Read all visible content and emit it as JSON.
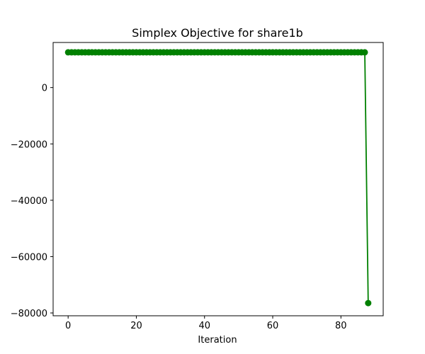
{
  "chart_data": {
    "type": "line",
    "title": "Simplex Objective for share1b",
    "xlabel": "Iteration",
    "ylabel": "",
    "xlim": [
      -4.4,
      92.4
    ],
    "ylim": [
      -81000,
      16000
    ],
    "x_ticks": [
      0,
      20,
      40,
      60,
      80
    ],
    "y_ticks": [
      0,
      -20000,
      -40000,
      -60000,
      -80000
    ],
    "x_tick_labels": [
      "0",
      "20",
      "40",
      "60",
      "80"
    ],
    "y_tick_labels": [
      "0",
      "−20000",
      "−40000",
      "−60000",
      "−80000"
    ],
    "grid": false,
    "legend": "none",
    "series": [
      {
        "color": "#008000",
        "marker": "circle",
        "x": [
          0,
          1,
          2,
          3,
          4,
          5,
          6,
          7,
          8,
          9,
          10,
          11,
          12,
          13,
          14,
          15,
          16,
          17,
          18,
          19,
          20,
          21,
          22,
          23,
          24,
          25,
          26,
          27,
          28,
          29,
          30,
          31,
          32,
          33,
          34,
          35,
          36,
          37,
          38,
          39,
          40,
          41,
          42,
          43,
          44,
          45,
          46,
          47,
          48,
          49,
          50,
          51,
          52,
          53,
          54,
          55,
          56,
          57,
          58,
          59,
          60,
          61,
          62,
          63,
          64,
          65,
          66,
          67,
          68,
          69,
          70,
          71,
          72,
          73,
          74,
          75,
          76,
          77,
          78,
          79,
          80,
          81,
          82,
          83,
          84,
          85,
          86,
          87,
          88
        ],
        "y": [
          12500,
          12500,
          12500,
          12500,
          12500,
          12500,
          12500,
          12500,
          12500,
          12500,
          12500,
          12500,
          12500,
          12500,
          12500,
          12500,
          12500,
          12500,
          12500,
          12500,
          12500,
          12500,
          12500,
          12500,
          12500,
          12500,
          12500,
          12500,
          12500,
          12500,
          12500,
          12500,
          12500,
          12500,
          12500,
          12500,
          12500,
          12500,
          12500,
          12500,
          12500,
          12500,
          12500,
          12500,
          12500,
          12500,
          12500,
          12500,
          12500,
          12500,
          12500,
          12500,
          12500,
          12500,
          12500,
          12500,
          12500,
          12500,
          12500,
          12500,
          12500,
          12500,
          12500,
          12500,
          12500,
          12500,
          12500,
          12500,
          12500,
          12500,
          12500,
          12500,
          12500,
          12500,
          12500,
          12500,
          12500,
          12500,
          12500,
          12500,
          12500,
          12500,
          12500,
          12500,
          12500,
          12500,
          12500,
          12500,
          -76500
        ]
      }
    ]
  }
}
